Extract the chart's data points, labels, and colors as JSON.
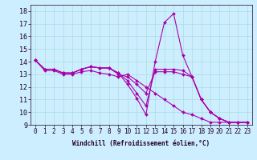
{
  "xlabel": "Windchill (Refroidissement éolien,°C)",
  "background_color": "#cceeff",
  "grid_color": "#aadddd",
  "line_color": "#aa00aa",
  "xlim": [
    -0.5,
    23.5
  ],
  "ylim": [
    9,
    18.5
  ],
  "xticks": [
    0,
    1,
    2,
    3,
    4,
    5,
    6,
    7,
    8,
    9,
    10,
    11,
    12,
    13,
    14,
    15,
    16,
    17,
    18,
    19,
    20,
    21,
    22,
    23
  ],
  "yticks": [
    9,
    10,
    11,
    12,
    13,
    14,
    15,
    16,
    17,
    18
  ],
  "series": [
    {
      "x": [
        0,
        1,
        2,
        3,
        4,
        5,
        6,
        7,
        8,
        9,
        10,
        11,
        12,
        13,
        14,
        15,
        16,
        17,
        18,
        19,
        20,
        21,
        22,
        23
      ],
      "y": [
        14.1,
        13.4,
        13.4,
        13.1,
        13.1,
        13.4,
        13.6,
        13.5,
        13.5,
        13.1,
        12.2,
        11.1,
        9.8,
        14.0,
        17.1,
        17.8,
        14.5,
        12.8,
        11.0,
        10.0,
        9.5,
        9.2,
        9.2,
        9.2
      ]
    },
    {
      "x": [
        0,
        1,
        2,
        3,
        4,
        5,
        6,
        7,
        8,
        9,
        10,
        11,
        12,
        13,
        14,
        15,
        16,
        17,
        18,
        19,
        20,
        21,
        22,
        23
      ],
      "y": [
        14.1,
        13.4,
        13.4,
        13.1,
        13.1,
        13.4,
        13.6,
        13.5,
        13.5,
        13.1,
        12.5,
        11.5,
        10.5,
        13.4,
        13.4,
        13.4,
        13.3,
        12.8,
        11.0,
        10.0,
        9.5,
        9.2,
        9.2,
        9.2
      ]
    },
    {
      "x": [
        0,
        1,
        2,
        3,
        4,
        5,
        6,
        7,
        8,
        9,
        10,
        11,
        12,
        13,
        14,
        15,
        16,
        17,
        18,
        19,
        20,
        21,
        22,
        23
      ],
      "y": [
        14.1,
        13.4,
        13.4,
        13.1,
        13.1,
        13.4,
        13.6,
        13.5,
        13.5,
        13.0,
        12.8,
        12.2,
        11.5,
        13.2,
        13.2,
        13.2,
        13.0,
        12.8,
        11.0,
        10.0,
        9.5,
        9.2,
        9.2,
        9.2
      ]
    },
    {
      "x": [
        0,
        1,
        2,
        3,
        4,
        5,
        6,
        7,
        8,
        9,
        10,
        11,
        12,
        13,
        14,
        15,
        16,
        17,
        18,
        19,
        20,
        21,
        22,
        23
      ],
      "y": [
        14.1,
        13.3,
        13.3,
        13.0,
        13.0,
        13.2,
        13.3,
        13.1,
        13.0,
        12.8,
        13.0,
        12.5,
        12.0,
        11.5,
        11.0,
        10.5,
        10.0,
        9.8,
        9.5,
        9.2,
        9.2,
        9.2,
        9.2,
        9.2
      ]
    }
  ],
  "marker": "D",
  "markersize": 2,
  "linewidth": 0.8,
  "tick_fontsize": 5.5,
  "xlabel_fontsize": 5.5
}
